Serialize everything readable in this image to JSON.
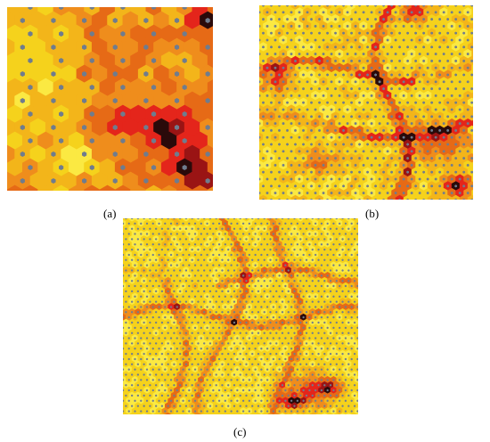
{
  "figure": {
    "panels": [
      {
        "id": "a",
        "label": "(a)"
      },
      {
        "id": "b",
        "label": "(b)"
      },
      {
        "id": "c",
        "label": "(c)"
      }
    ]
  },
  "palette": {
    "light_yellow": "#fbe942",
    "yellow": "#f5d21c",
    "gold": "#f3b51a",
    "orange": "#ef8d1c",
    "dark_orange": "#e66a16",
    "red": "#e4251b",
    "dark_red": "#9a1414",
    "black_red": "#2a0a0a",
    "node": "#6f7c8e"
  }
}
